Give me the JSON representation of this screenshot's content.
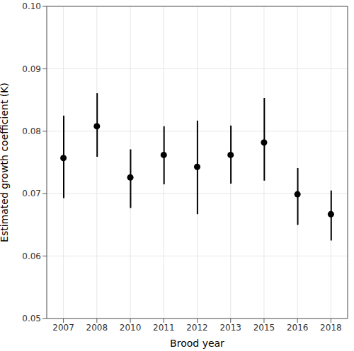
{
  "chart_data": {
    "type": "scatter",
    "x_label": "Brood year",
    "y_label": "Estimated growth coefficient (K̄)",
    "categories": [
      "2007",
      "2008",
      "2010",
      "2011",
      "2012",
      "2013",
      "2015",
      "2016",
      "2018"
    ],
    "values": [
      0.0757,
      0.0808,
      0.0726,
      0.0762,
      0.0743,
      0.0762,
      0.0782,
      0.0699,
      0.0667
    ],
    "lower": [
      0.0693,
      0.0759,
      0.0677,
      0.0715,
      0.0667,
      0.0716,
      0.0721,
      0.065,
      0.0625
    ],
    "upper": [
      0.0825,
      0.0861,
      0.0771,
      0.0808,
      0.0817,
      0.0809,
      0.0853,
      0.0741,
      0.0705
    ],
    "color": "#000000",
    "ylim": [
      0.05,
      0.1
    ],
    "yticks": [
      0.05,
      0.06,
      0.07,
      0.08,
      0.09,
      {
        "value": 0.1,
        "label": "0.10"
      }
    ],
    "grid": true,
    "marker": "circle"
  }
}
